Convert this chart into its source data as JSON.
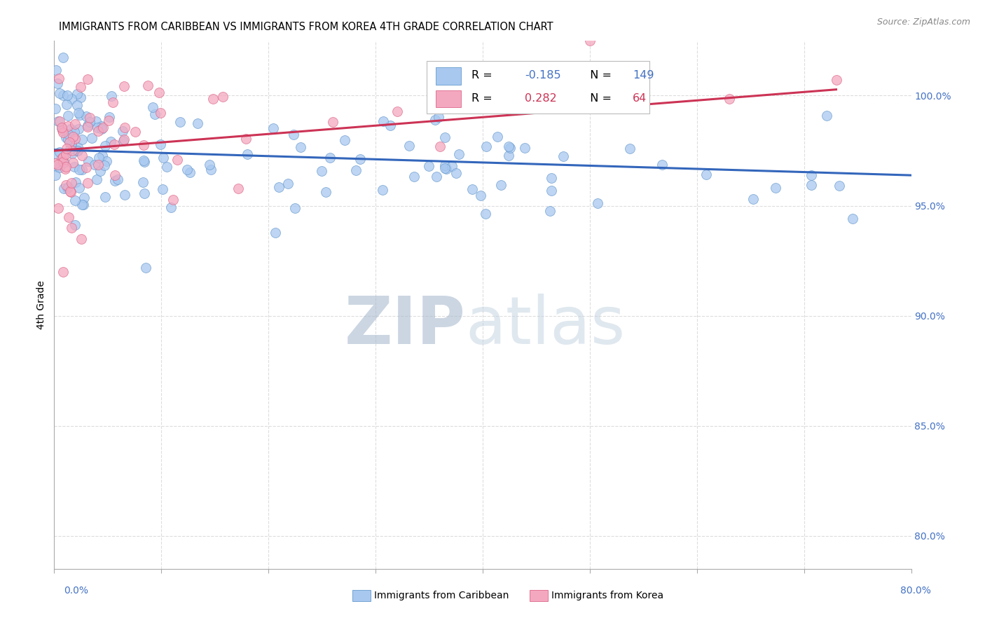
{
  "title": "IMMIGRANTS FROM CARIBBEAN VS IMMIGRANTS FROM KOREA 4TH GRADE CORRELATION CHART",
  "source": "Source: ZipAtlas.com",
  "ylabel": "4th Grade",
  "ytick_values": [
    0.8,
    0.85,
    0.9,
    0.95,
    1.0
  ],
  "xlim": [
    0.0,
    0.8
  ],
  "ylim": [
    0.785,
    1.025
  ],
  "legend_blue_label": "Immigrants from Caribbean",
  "legend_pink_label": "Immigrants from Korea",
  "R_blue": -0.185,
  "N_blue": 149,
  "R_pink": 0.282,
  "N_pink": 64,
  "blue_color": "#A8C8F0",
  "pink_color": "#F4A8C0",
  "blue_edge_color": "#6699CC",
  "pink_edge_color": "#DD6688",
  "blue_line_color": "#3366BB",
  "pink_line_color": "#CC3355",
  "title_fontsize": 10.5,
  "source_fontsize": 9,
  "watermark_zip_color": "#AABBD0",
  "watermark_atlas_color": "#BBCCDD",
  "watermark_fontsize": 68,
  "grid_color": "#DDDDDD",
  "right_tick_color": "#4472C4"
}
